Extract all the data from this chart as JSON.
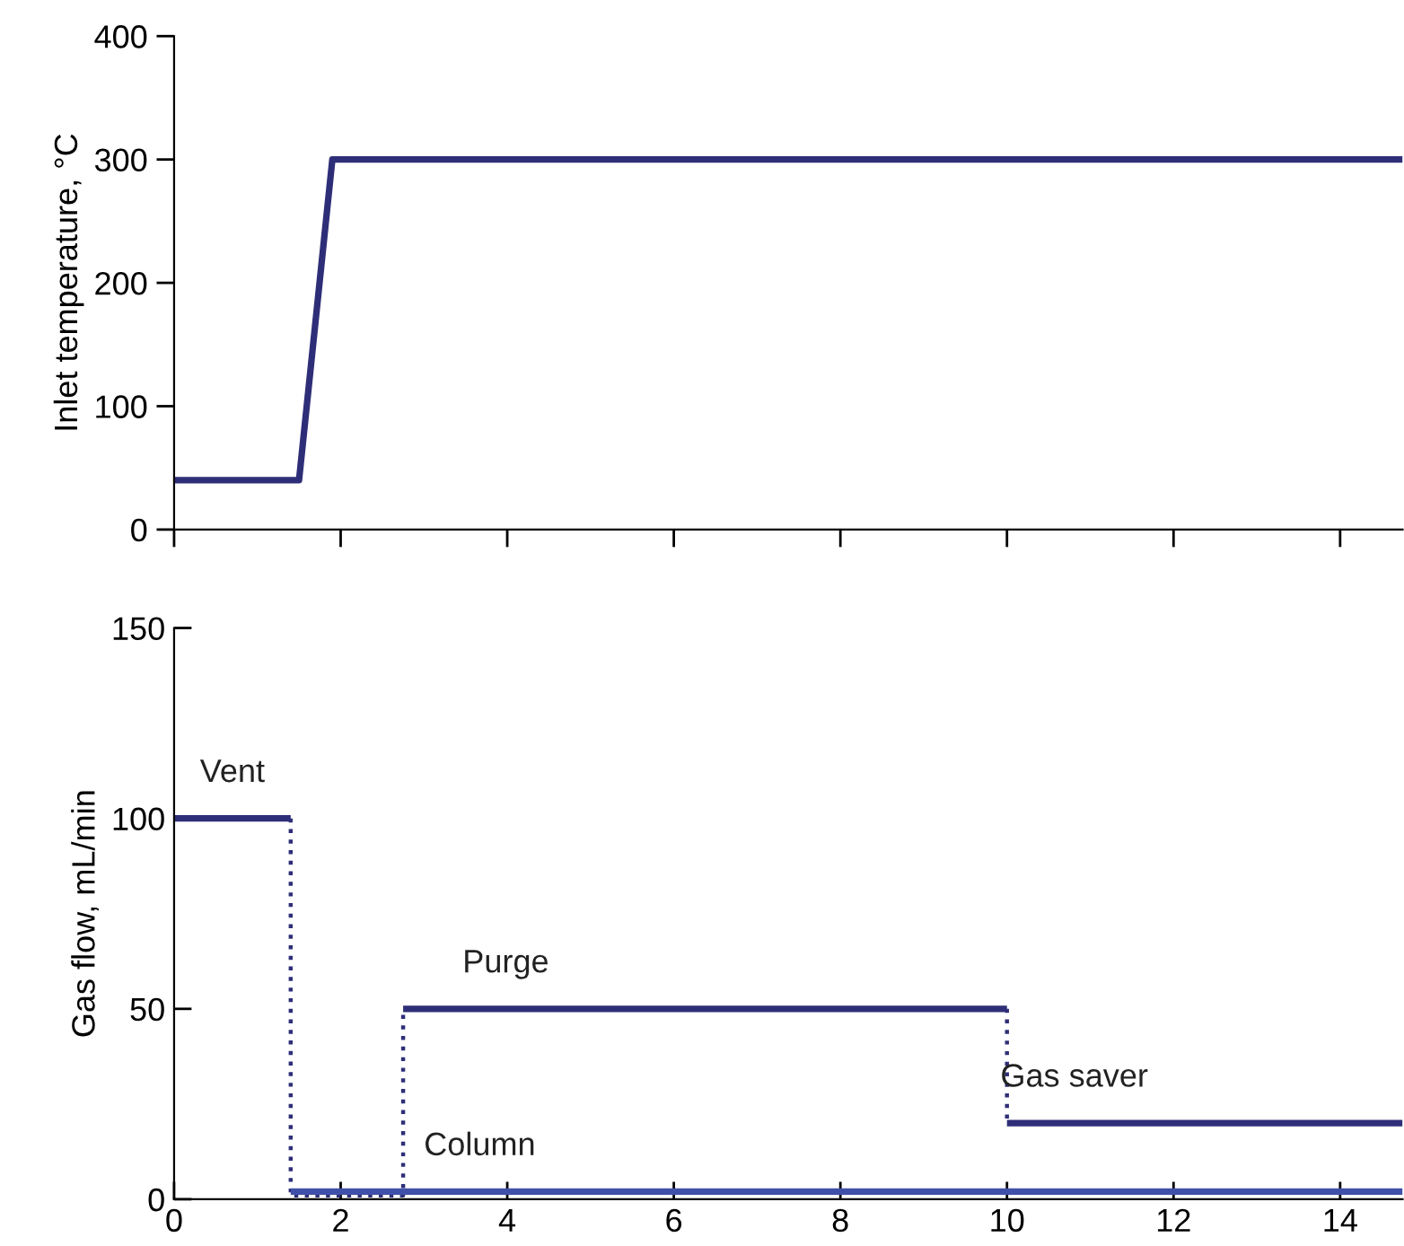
{
  "chart_data": [
    {
      "type": "line",
      "ylabel": "Inlet temperature, °C",
      "xlim": [
        0,
        14.75
      ],
      "xticks": [
        0,
        2,
        4,
        6,
        8,
        10,
        12,
        14
      ],
      "ylim": [
        0,
        400
      ],
      "yticks": [
        0,
        100,
        200,
        300,
        400
      ],
      "tick_labels": "y",
      "grid": false,
      "legend": false,
      "series": [
        {
          "color": "#2e2e78",
          "x": [
            0,
            1.5,
            1.9,
            14.75
          ],
          "values": [
            40,
            40,
            300,
            300
          ],
          "line_style": "solid"
        }
      ]
    },
    {
      "type": "line",
      "ylabel": "Gas flow, mL/min",
      "xlim": [
        0,
        14.75
      ],
      "xticks": [
        0,
        2,
        4,
        6,
        8,
        10,
        12,
        14
      ],
      "ylim": [
        0,
        150
      ],
      "yticks": [
        0,
        50,
        100,
        150
      ],
      "grid": false,
      "legend": false,
      "series": [
        {
          "name": "Vent",
          "color": "#2e2e78",
          "x": [
            0,
            1.4
          ],
          "values": [
            100,
            100
          ],
          "line_style": "solid"
        },
        {
          "color": "#2e2e78",
          "x": [
            1.4,
            1.4,
            2.75,
            2.75
          ],
          "values": [
            100,
            1,
            1,
            50
          ],
          "line_style": "dotted"
        },
        {
          "name": "Purge",
          "color": "#2e2e78",
          "x": [
            2.75,
            10
          ],
          "values": [
            50,
            50
          ],
          "line_style": "solid"
        },
        {
          "color": "#2e2e78",
          "x": [
            10,
            10
          ],
          "values": [
            50,
            20
          ],
          "line_style": "dotted"
        },
        {
          "name": "Gas saver",
          "color": "#2e2e78",
          "x": [
            10,
            14.75
          ],
          "values": [
            20,
            20
          ],
          "line_style": "solid"
        },
        {
          "name": "Column",
          "color": "#4050a8",
          "x": [
            1.4,
            14.75
          ],
          "values": [
            2,
            2
          ],
          "line_style": "solid"
        }
      ]
    }
  ]
}
